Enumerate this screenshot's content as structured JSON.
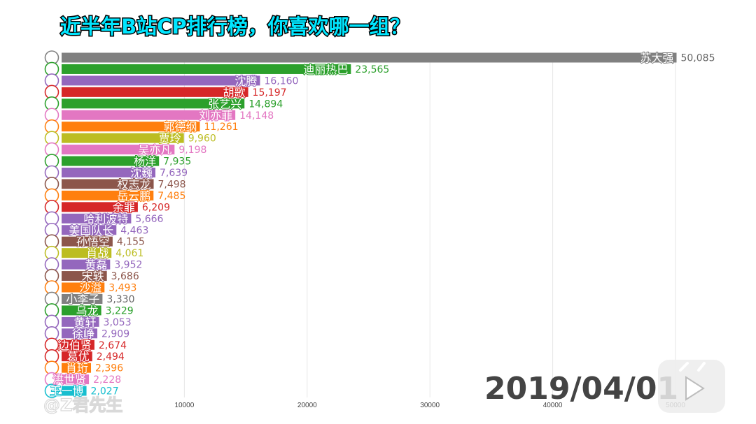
{
  "title": "近半年B站CP排行榜，你喜欢哪一组？",
  "date": "2019/04/01",
  "watermark": "@Z君先生",
  "chart_data": {
    "type": "bar",
    "orientation": "horizontal",
    "title": "近半年B站CP排行榜，你喜欢哪一组？",
    "xlim": [
      0,
      50000
    ],
    "xticks": [
      10000,
      20000,
      30000,
      40000,
      50000
    ],
    "xtick_labels": [
      "10000",
      "20000",
      "30000",
      "40000",
      "50000"
    ],
    "grid": true,
    "bars": [
      {
        "label": "苏大强",
        "value": 50085,
        "value_text": "50,085",
        "color": "#808080"
      },
      {
        "label": "迪丽热巴",
        "value": 23565,
        "value_text": "23,565",
        "color": "#2ca02c"
      },
      {
        "label": "沈腾",
        "value": 16160,
        "value_text": "16,160",
        "color": "#9467bd"
      },
      {
        "label": "胡歌",
        "value": 15197,
        "value_text": "15,197",
        "color": "#d62728"
      },
      {
        "label": "张艺兴",
        "value": 14894,
        "value_text": "14,894",
        "color": "#2ca02c"
      },
      {
        "label": "刘亦菲",
        "value": 14148,
        "value_text": "14,148",
        "color": "#e377c2"
      },
      {
        "label": "郭德纲",
        "value": 11261,
        "value_text": "11,261",
        "color": "#ff7f0e"
      },
      {
        "label": "贾玲",
        "value": 9960,
        "value_text": "9,960",
        "color": "#bcbd22"
      },
      {
        "label": "吴亦凡",
        "value": 9198,
        "value_text": "9,198",
        "color": "#e377c2"
      },
      {
        "label": "杨洋",
        "value": 7935,
        "value_text": "7,935",
        "color": "#2ca02c"
      },
      {
        "label": "沈巍",
        "value": 7639,
        "value_text": "7,639",
        "color": "#9467bd"
      },
      {
        "label": "权志龙",
        "value": 7498,
        "value_text": "7,498",
        "color": "#8c564b"
      },
      {
        "label": "岳云鹏",
        "value": 7485,
        "value_text": "7,485",
        "color": "#ff7f0e"
      },
      {
        "label": "余罪",
        "value": 6209,
        "value_text": "6,209",
        "color": "#d62728"
      },
      {
        "label": "哈利波特",
        "value": 5666,
        "value_text": "5,666",
        "color": "#9467bd"
      },
      {
        "label": "美国队长",
        "value": 4463,
        "value_text": "4,463",
        "color": "#9467bd"
      },
      {
        "label": "孙悟空",
        "value": 4155,
        "value_text": "4,155",
        "color": "#8c564b"
      },
      {
        "label": "肖战",
        "value": 4061,
        "value_text": "4,061",
        "color": "#bcbd22"
      },
      {
        "label": "黄磊",
        "value": 3952,
        "value_text": "3,952",
        "color": "#9467bd"
      },
      {
        "label": "宋轶",
        "value": 3686,
        "value_text": "3,686",
        "color": "#8c564b"
      },
      {
        "label": "沙溢",
        "value": 3493,
        "value_text": "3,493",
        "color": "#ff7f0e"
      },
      {
        "label": "小李子",
        "value": 3330,
        "value_text": "3,330",
        "color": "#808080"
      },
      {
        "label": "乌龙",
        "value": 3229,
        "value_text": "3,229",
        "color": "#2ca02c"
      },
      {
        "label": "黄轩",
        "value": 3053,
        "value_text": "3,053",
        "color": "#9467bd"
      },
      {
        "label": "徐峥",
        "value": 2909,
        "value_text": "2,909",
        "color": "#9467bd"
      },
      {
        "label": "边伯贤",
        "value": 2674,
        "value_text": "2,674",
        "color": "#d62728"
      },
      {
        "label": "葛优",
        "value": 2494,
        "value_text": "2,494",
        "color": "#d62728"
      },
      {
        "label": "肖珩",
        "value": 2396,
        "value_text": "2,396",
        "color": "#ff7f0e"
      },
      {
        "label": "洪世贤",
        "value": 2228,
        "value_text": "2,228",
        "color": "#e377c2"
      },
      {
        "label": "王一博",
        "value": 2027,
        "value_text": "2,027",
        "color": "#17becf"
      }
    ]
  }
}
